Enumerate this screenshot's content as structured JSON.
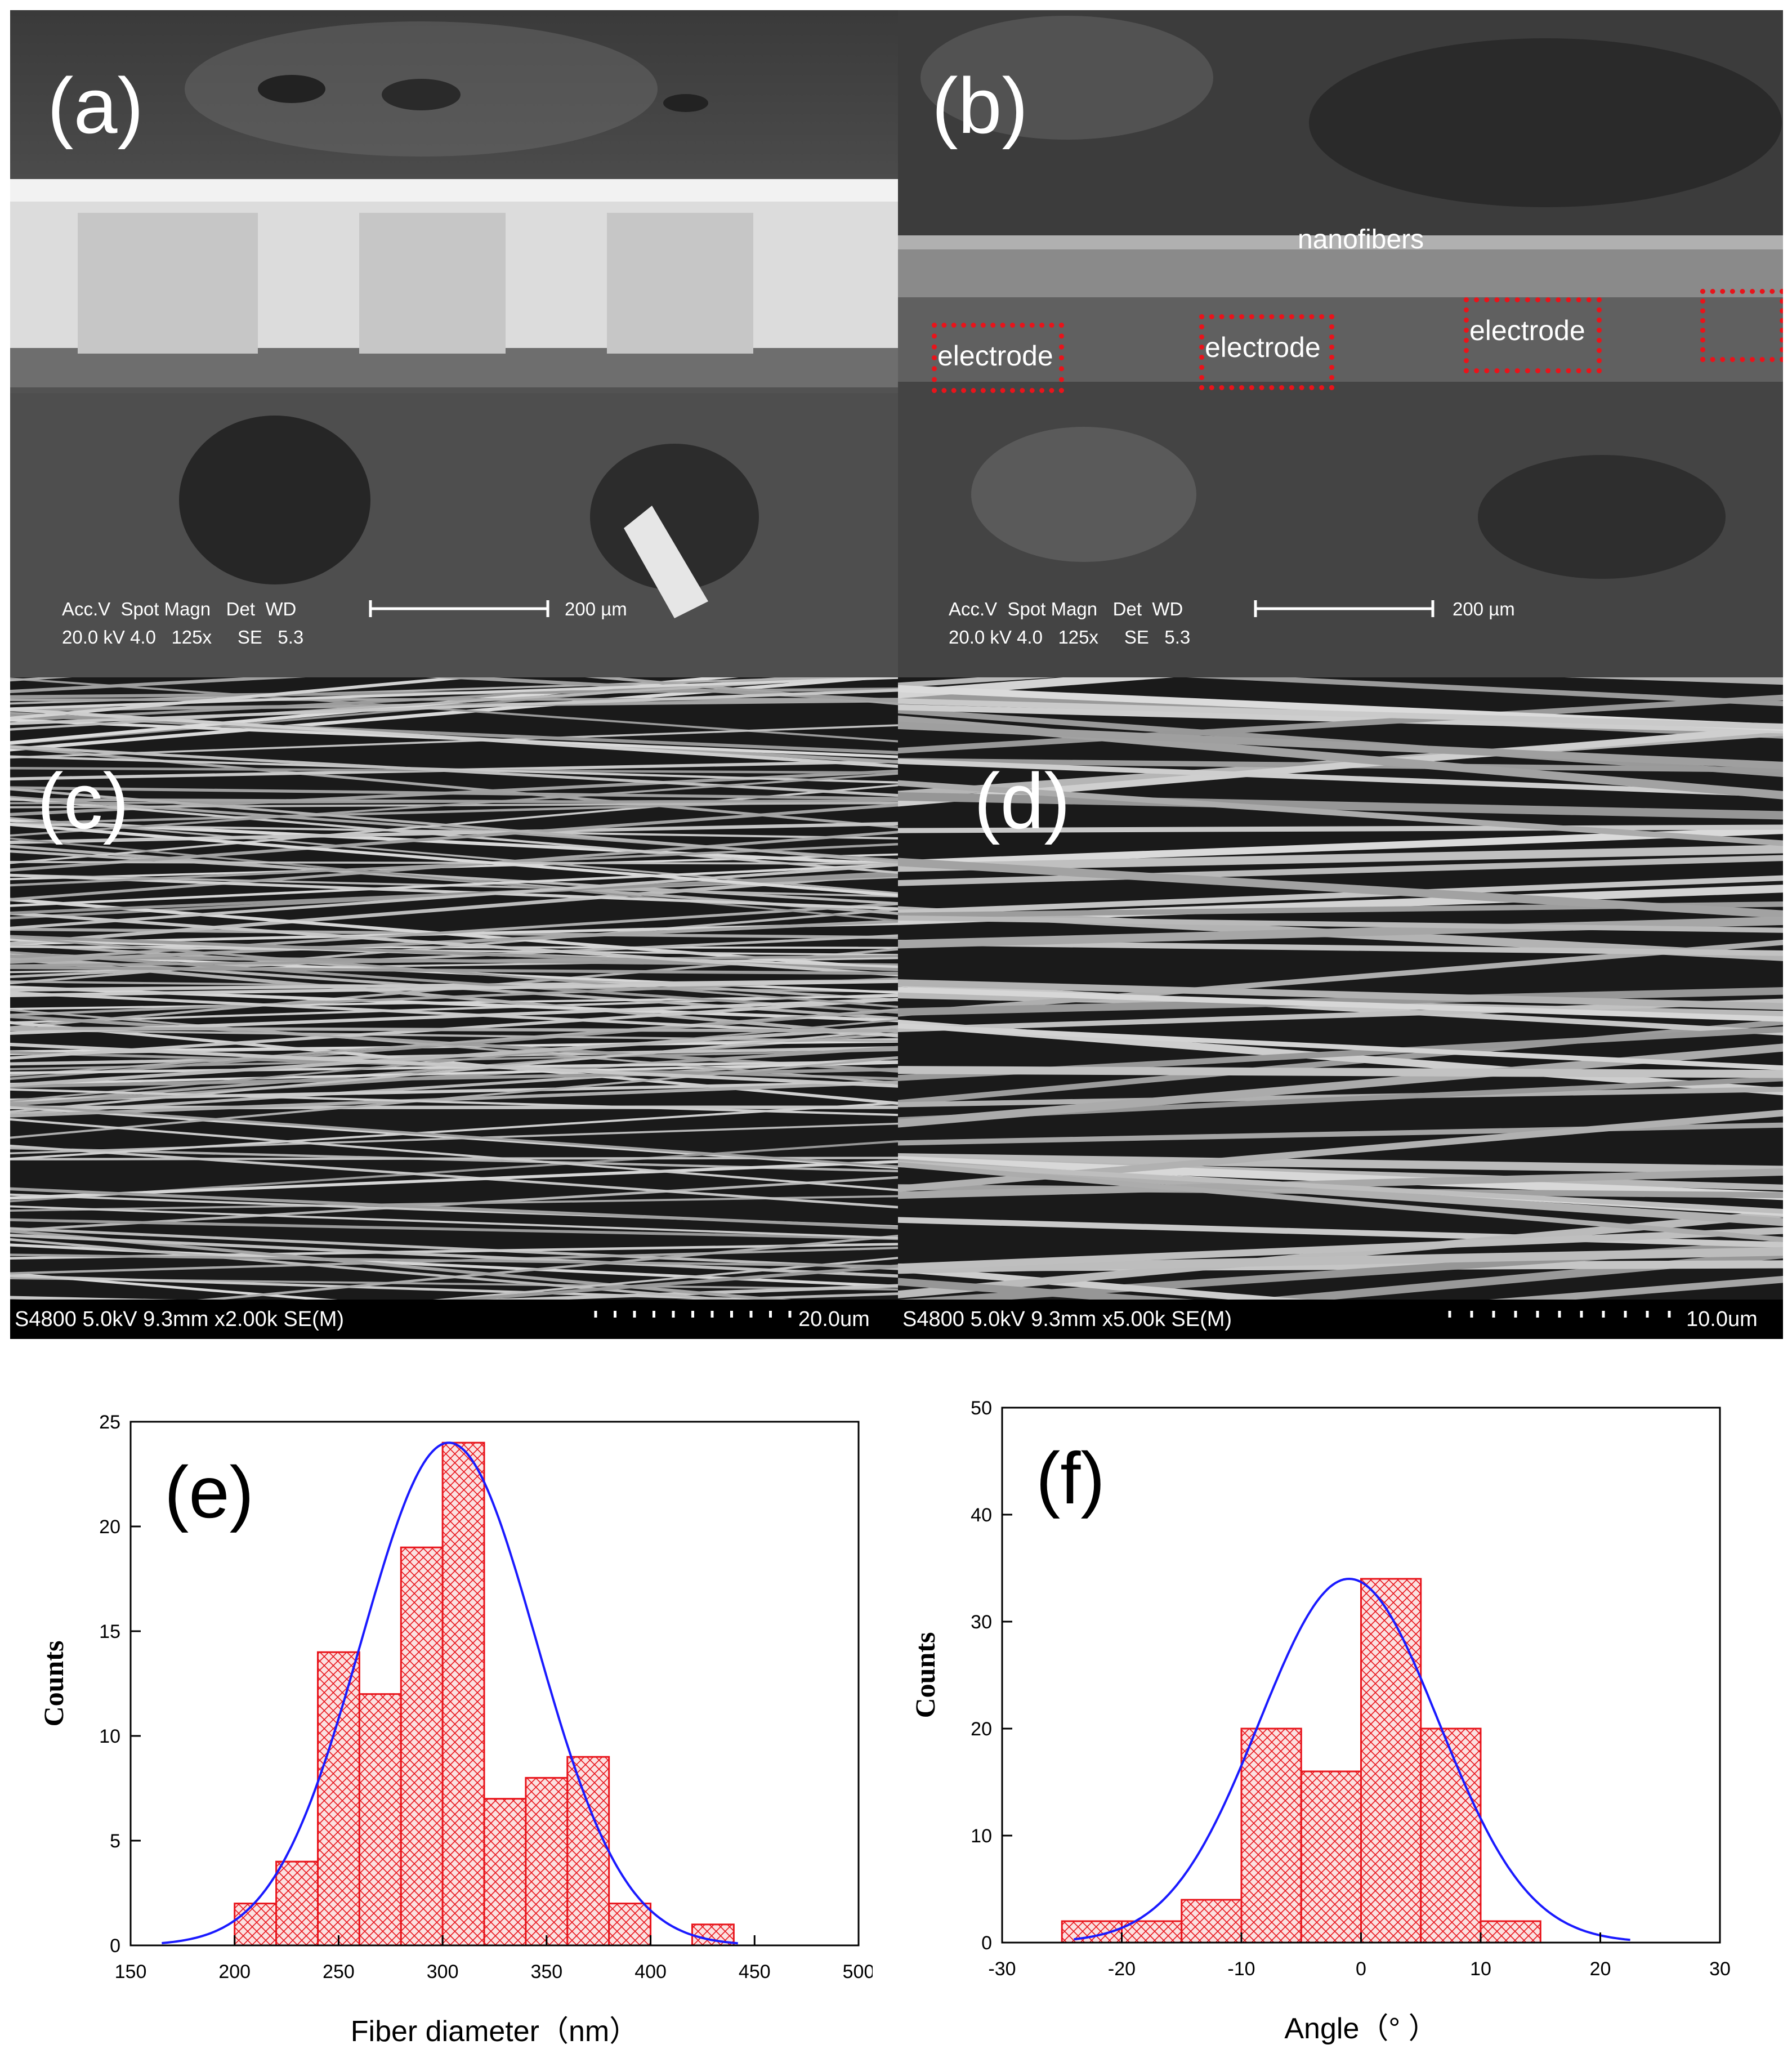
{
  "panels": {
    "a": {
      "label": "(a)",
      "info_header": "Acc.V  Spot Magn   Det  WD",
      "info_values": "20.0 kV 4.0   125x     SE   5.3",
      "scale_label": "200 µm"
    },
    "b": {
      "label": "(b)",
      "nanofibers_label": "nanofibers",
      "electrode_labels": [
        "electrode",
        "electrode",
        "electrode"
      ],
      "info_header": "Acc.V  Spot Magn   Det  WD",
      "info_values": "20.0 kV 4.0   125x     SE   5.3",
      "scale_label": "200 µm"
    },
    "c": {
      "label": "(c)",
      "info_bar": "S4800 5.0kV 9.3mm x2.00k SE(M)",
      "scale_label": "20.0um"
    },
    "d": {
      "label": "(d)",
      "info_bar": "S4800 5.0kV 9.3mm x5.00k SE(M)",
      "scale_label": "10.0um"
    }
  },
  "colors": {
    "bar_edge": "#e8141b",
    "bar_hatch": "#e8141b",
    "bar_fill": "#fbe1e1",
    "fit_curve": "#1a1aff",
    "highlight_box": "#e8141b"
  },
  "chart_data": [
    {
      "type": "bar",
      "panel_label": "(e)",
      "title": "",
      "xlabel": "Fiber diameter（nm）",
      "ylabel": "Counts",
      "xlim": [
        150,
        500
      ],
      "ylim": [
        0,
        25
      ],
      "xticks": [
        150,
        200,
        250,
        300,
        350,
        400,
        450,
        500
      ],
      "yticks": [
        0,
        5,
        10,
        15,
        20,
        25
      ],
      "bin_width": 20,
      "bins": [
        {
          "start": 200,
          "end": 220,
          "count": 2
        },
        {
          "start": 220,
          "end": 240,
          "count": 4
        },
        {
          "start": 240,
          "end": 260,
          "count": 14
        },
        {
          "start": 260,
          "end": 280,
          "count": 12
        },
        {
          "start": 280,
          "end": 300,
          "count": 19
        },
        {
          "start": 300,
          "end": 320,
          "count": 24
        },
        {
          "start": 320,
          "end": 340,
          "count": 7
        },
        {
          "start": 340,
          "end": 360,
          "count": 8
        },
        {
          "start": 360,
          "end": 380,
          "count": 9
        },
        {
          "start": 380,
          "end": 400,
          "count": 2
        },
        {
          "start": 400,
          "end": 420,
          "count": 0
        },
        {
          "start": 420,
          "end": 440,
          "count": 1
        }
      ],
      "fit": {
        "type": "gaussian",
        "mean": 303,
        "sigma": 42,
        "peak": 24,
        "range": [
          165,
          442
        ]
      }
    },
    {
      "type": "bar",
      "panel_label": "(f)",
      "title": "",
      "xlabel": "Angle（° ）",
      "ylabel": "Counts",
      "xlim": [
        -30,
        30
      ],
      "ylim": [
        0,
        50
      ],
      "xticks": [
        -30,
        -20,
        -10,
        0,
        10,
        20,
        30
      ],
      "yticks": [
        0,
        10,
        20,
        30,
        40,
        50
      ],
      "bin_width": 5,
      "bins": [
        {
          "start": -25,
          "end": -20,
          "count": 2
        },
        {
          "start": -20,
          "end": -15,
          "count": 2
        },
        {
          "start": -15,
          "end": -10,
          "count": 4
        },
        {
          "start": -10,
          "end": -5,
          "count": 20
        },
        {
          "start": -5,
          "end": 0,
          "count": 16
        },
        {
          "start": 0,
          "end": 5,
          "count": 34
        },
        {
          "start": 5,
          "end": 10,
          "count": 20
        },
        {
          "start": 10,
          "end": 15,
          "count": 2
        }
      ],
      "fit": {
        "type": "gaussian",
        "mean": -1,
        "sigma": 7.5,
        "peak": 34,
        "range": [
          -24,
          22.5
        ]
      }
    }
  ]
}
